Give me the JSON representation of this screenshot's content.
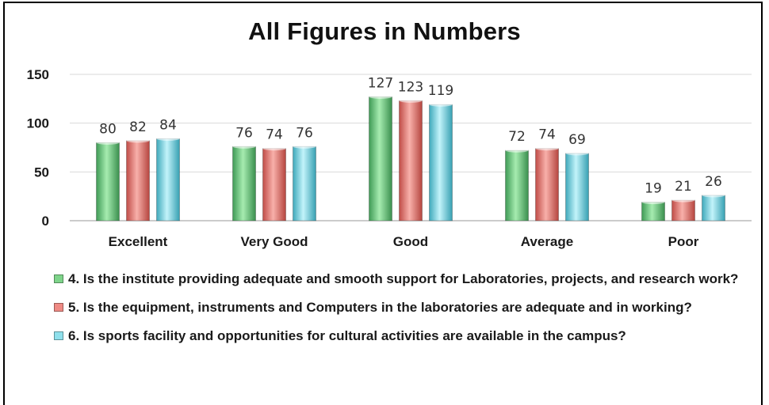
{
  "chart_data": {
    "type": "bar",
    "title": "All Figures in Numbers",
    "categories": [
      "Excellent",
      "Very Good",
      "Good",
      "Average",
      "Poor"
    ],
    "series": [
      {
        "name": "4. Is the institute providing adequate and smooth support for Laboratories, projects, and research work?",
        "values": [
          80,
          76,
          127,
          72,
          19
        ],
        "color": "#7ed48a"
      },
      {
        "name": "5. Is the equipment, instruments and Computers in the laboratories are adequate and in working?",
        "values": [
          82,
          74,
          123,
          74,
          21
        ],
        "color": "#ef8a84"
      },
      {
        "name": "6. Is sports facility and opportunities for cultural activities are available in the campus?",
        "values": [
          84,
          76,
          119,
          69,
          26
        ],
        "color": "#8fe0ec"
      }
    ],
    "ylim": [
      0,
      150
    ],
    "yticks": [
      0,
      50,
      100,
      150
    ],
    "grid": true,
    "legend_position": "bottom",
    "data_labels": true
  }
}
